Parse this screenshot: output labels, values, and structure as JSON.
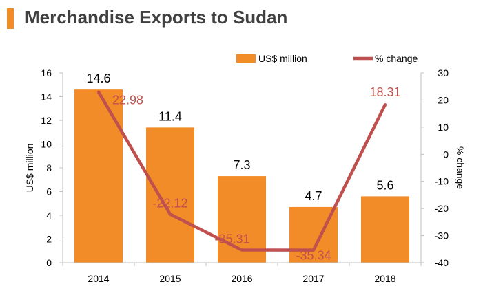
{
  "page": {
    "title": "Merchandise Exports to Sudan",
    "accent_color": "#F28C28"
  },
  "chart_data": {
    "type": "bar+line",
    "categories": [
      "2014",
      "2015",
      "2016",
      "2017",
      "2018"
    ],
    "series": [
      {
        "name": "US$ million",
        "type": "bar",
        "axis": "left",
        "color": "#F28C28",
        "values": [
          14.6,
          11.4,
          7.3,
          4.7,
          5.6
        ],
        "labels": [
          "14.6",
          "11.4",
          "7.3",
          "4.7",
          "5.6"
        ]
      },
      {
        "name": "% change",
        "type": "line",
        "axis": "right",
        "color": "#C0504D",
        "values": [
          22.98,
          -22.12,
          -35.31,
          -35.34,
          18.31
        ],
        "labels": [
          "22.98",
          "-22.12",
          "-35.31",
          "-35.34",
          "18.31"
        ]
      }
    ],
    "ylabel": "US$ million",
    "ylabel_right": "% change",
    "ylim": [
      0,
      16
    ],
    "yticks": [
      0,
      2,
      4,
      6,
      8,
      10,
      12,
      14,
      16
    ],
    "ylim_right": [
      -40,
      30
    ],
    "yticks_right": [
      -40,
      -30,
      -20,
      -10,
      0,
      10,
      20,
      30
    ],
    "legend_position": "top-right",
    "grid": false
  }
}
